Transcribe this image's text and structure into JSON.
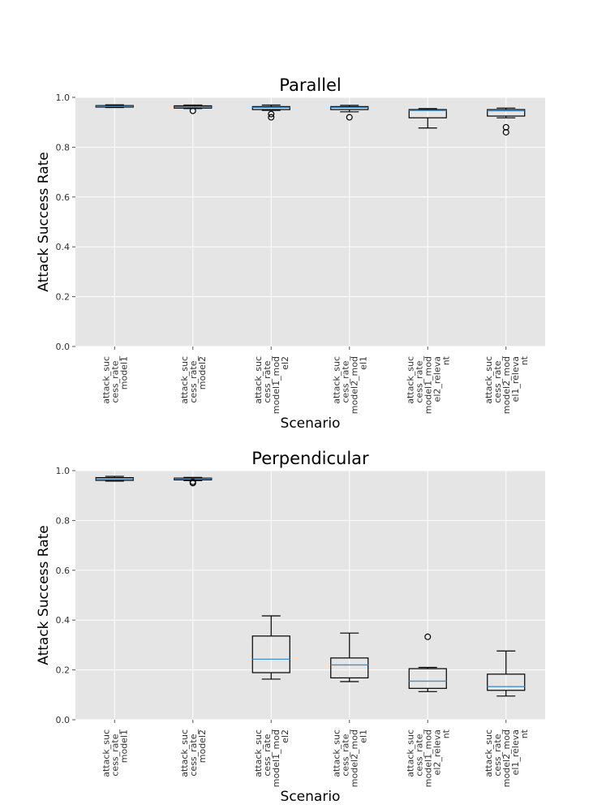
{
  "chart_data": [
    {
      "type": "box",
      "title": "Parallel",
      "xlabel": "Scenario",
      "ylabel": "Attack Success Rate",
      "ylim": [
        0.0,
        1.0
      ],
      "yticks": [
        "0.0",
        "0.2",
        "0.4",
        "0.6",
        "0.8",
        "1.0"
      ],
      "grid": true,
      "categories": [
        [
          "attack_suc",
          "cess_rate_",
          "model1"
        ],
        [
          "attack_suc",
          "cess_rate_",
          "model2"
        ],
        [
          "attack_suc",
          "cess_rate_",
          "model1_mod",
          "el2"
        ],
        [
          "attack_suc",
          "cess_rate_",
          "model2_mod",
          "el1"
        ],
        [
          "attack_suc",
          "cess_rate_",
          "model1_mod",
          "el2_releva",
          "nt"
        ],
        [
          "attack_suc",
          "cess_rate_",
          "model2_mod",
          "el1_releva",
          "nt"
        ]
      ],
      "boxes": [
        {
          "whislo": 0.959,
          "q1": 0.961,
          "med": 0.964,
          "q3": 0.967,
          "whishi": 0.97,
          "fliers": []
        },
        {
          "whislo": 0.955,
          "q1": 0.957,
          "med": 0.962,
          "q3": 0.966,
          "whishi": 0.969,
          "fliers": [
            0.946
          ]
        },
        {
          "whislo": 0.948,
          "q1": 0.951,
          "med": 0.959,
          "q3": 0.963,
          "whishi": 0.969,
          "fliers": [
            0.933,
            0.92
          ]
        },
        {
          "whislo": 0.942,
          "q1": 0.951,
          "med": 0.959,
          "q3": 0.963,
          "whishi": 0.968,
          "fliers": [
            0.92
          ]
        },
        {
          "whislo": 0.877,
          "q1": 0.918,
          "med": 0.947,
          "q3": 0.951,
          "whishi": 0.955,
          "fliers": []
        },
        {
          "whislo": 0.918,
          "q1": 0.925,
          "med": 0.946,
          "q3": 0.951,
          "whishi": 0.957,
          "fliers": [
            0.88,
            0.86
          ]
        }
      ]
    },
    {
      "type": "box",
      "title": "Perpendicular",
      "xlabel": "Scenario",
      "ylabel": "Attack Success Rate",
      "ylim": [
        0.0,
        1.0
      ],
      "yticks": [
        "0.0",
        "0.2",
        "0.4",
        "0.6",
        "0.8",
        "1.0"
      ],
      "grid": true,
      "categories": [
        [
          "attack_suc",
          "cess_rate_",
          "model1"
        ],
        [
          "attack_suc",
          "cess_rate_",
          "model2"
        ],
        [
          "attack_suc",
          "cess_rate_",
          "model1_mod",
          "el2"
        ],
        [
          "attack_suc",
          "cess_rate_",
          "model2_mod",
          "el1"
        ],
        [
          "attack_suc",
          "cess_rate_",
          "model1_mod",
          "el2_releva",
          "nt"
        ],
        [
          "attack_suc",
          "cess_rate_",
          "model2_mod",
          "el1_releva",
          "nt"
        ]
      ],
      "boxes": [
        {
          "whislo": 0.958,
          "q1": 0.961,
          "med": 0.967,
          "q3": 0.972,
          "whishi": 0.977,
          "fliers": []
        },
        {
          "whislo": 0.96,
          "q1": 0.963,
          "med": 0.967,
          "q3": 0.97,
          "whishi": 0.973,
          "fliers": [
            0.955,
            0.95
          ]
        },
        {
          "whislo": 0.163,
          "q1": 0.189,
          "med": 0.243,
          "q3": 0.336,
          "whishi": 0.417,
          "fliers": []
        },
        {
          "whislo": 0.153,
          "q1": 0.168,
          "med": 0.22,
          "q3": 0.248,
          "whishi": 0.348,
          "fliers": []
        },
        {
          "whislo": 0.113,
          "q1": 0.126,
          "med": 0.155,
          "q3": 0.205,
          "whishi": 0.21,
          "fliers": [
            0.333
          ]
        },
        {
          "whislo": 0.095,
          "q1": 0.118,
          "med": 0.133,
          "q3": 0.183,
          "whishi": 0.276,
          "fliers": []
        }
      ]
    }
  ]
}
